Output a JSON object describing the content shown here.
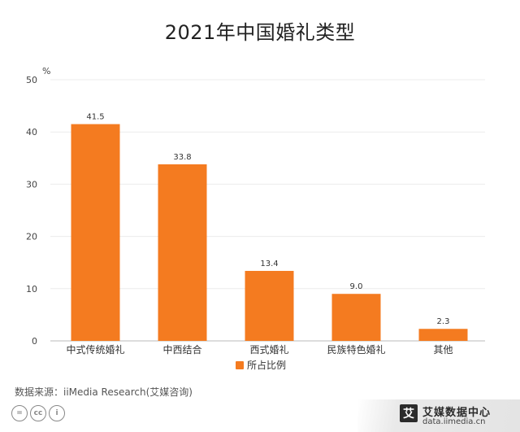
{
  "page": {
    "title": "2021年中国婚礼类型",
    "source": "数据来源：iiMedia Research(艾媒咨询)",
    "brand_name": "艾媒数据中心",
    "brand_url": "data.iimedia.cn",
    "brand_logo_glyph": "艾",
    "cc_badges": [
      "=",
      "cc",
      "i"
    ]
  },
  "chart_data": {
    "type": "bar",
    "title": "2021年中国婚礼类型",
    "y_unit": "%",
    "categories": [
      "中式传统婚礼",
      "中西结合",
      "西式婚礼",
      "民族特色婚礼",
      "其他"
    ],
    "series": [
      {
        "name": "所占比例",
        "values": [
          41.5,
          33.8,
          13.4,
          9.0,
          2.3
        ],
        "color": "#f47b20"
      }
    ],
    "value_labels": [
      "41.5",
      "33.8",
      "13.4",
      "9.0",
      "2.3"
    ],
    "ylim": [
      0,
      50
    ],
    "yticks": [
      0,
      10,
      20,
      30,
      40,
      50
    ],
    "grid": true,
    "legend_position": "bottom-center"
  }
}
